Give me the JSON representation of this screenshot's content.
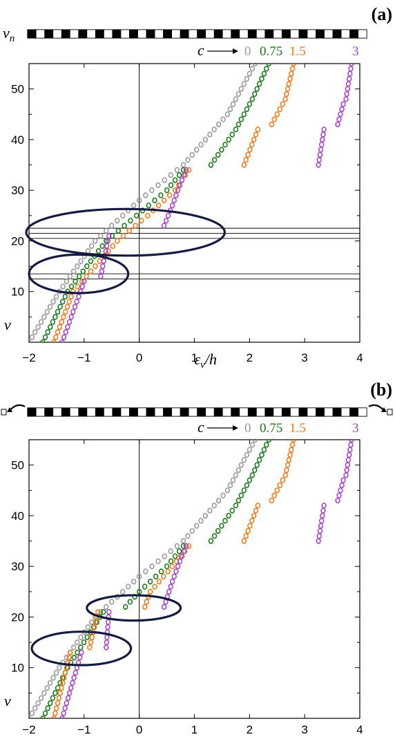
{
  "colors": {
    "c0": "#9a9a9a",
    "c075": "#1a7a1a",
    "c15": "#f07c20",
    "c3": "#a845c8",
    "ellipse": "#141a40",
    "frame": "#000000"
  },
  "chart_data": [
    {
      "type": "scatter",
      "panel_label": "(a)",
      "strip_label": "v_n",
      "xlabel": "ε_ν/h",
      "ylabel": "ν",
      "c_label": "c",
      "xlim": [
        -2,
        4
      ],
      "ylim": [
        0,
        55
      ],
      "xticks": [
        "−2",
        "−1",
        "0",
        "1",
        "2",
        "3",
        "4"
      ],
      "yticks": [
        "10",
        "20",
        "30",
        "40",
        "50"
      ],
      "c_values": [
        "0",
        "0.75",
        "1.5",
        "3"
      ],
      "series": [
        {
          "name": "0",
          "color_key": "c0",
          "nu_range": [
            0,
            55
          ],
          "anchors": [
            [
              0,
              -2.0
            ],
            [
              10,
              -1.45
            ],
            [
              20,
              -0.8
            ],
            [
              28,
              0.0
            ],
            [
              35,
              0.8
            ],
            [
              45,
              1.6
            ],
            [
              55,
              2.1
            ]
          ]
        },
        {
          "name": "0.75",
          "color_key": "c075",
          "segments": [
            {
              "nu_range": [
                0,
                34
              ],
              "anchors": [
                [
                  0,
                  -1.75
                ],
                [
                  10,
                  -1.3
                ],
                [
                  20,
                  -0.6
                ],
                [
                  25,
                  -0.05
                ],
                [
                  30,
                  0.5
                ],
                [
                  34,
                  0.8
                ]
              ]
            },
            {
              "nu_range": [
                35,
                55
              ],
              "anchors": [
                [
                  35,
                  1.3
                ],
                [
                  42,
                  1.75
                ],
                [
                  48,
                  2.05
                ],
                [
                  55,
                  2.35
                ]
              ]
            }
          ]
        },
        {
          "name": "1.5",
          "color_key": "c15",
          "segments": [
            {
              "nu_range": [
                0,
                34
              ],
              "anchors": [
                [
                  0,
                  -1.55
                ],
                [
                  10,
                  -1.2
                ],
                [
                  20,
                  -0.4
                ],
                [
                  25,
                  0.15
                ],
                [
                  30,
                  0.65
                ],
                [
                  34,
                  0.9
                ]
              ]
            },
            {
              "nu_range": [
                35,
                42
              ],
              "anchors": [
                [
                  35,
                  1.9
                ],
                [
                  42,
                  2.15
                ]
              ]
            },
            {
              "nu_range": [
                43,
                47
              ],
              "anchors": [
                [
                  43,
                  2.4
                ],
                [
                  47,
                  2.6
                ]
              ]
            },
            {
              "nu_range": [
                48,
                55
              ],
              "anchors": [
                [
                  48,
                  2.65
                ],
                [
                  55,
                  2.8
                ]
              ]
            }
          ]
        },
        {
          "name": "3",
          "color_key": "c3",
          "segments": [
            {
              "nu_range": [
                0,
                12
              ],
              "anchors": [
                [
                  0,
                  -1.4
                ],
                [
                  12,
                  -1.0
                ]
              ]
            },
            {
              "nu_range": [
                13,
                21
              ],
              "anchors": [
                [
                  13,
                  -0.7
                ],
                [
                  21,
                  -0.55
                ]
              ]
            },
            {
              "nu_range": [
                23,
                34
              ],
              "anchors": [
                [
                  23,
                  0.45
                ],
                [
                  27,
                  0.6
                ],
                [
                  30,
                  0.7
                ],
                [
                  34,
                  0.85
                ]
              ]
            },
            {
              "nu_range": [
                35,
                42
              ],
              "anchors": [
                [
                  35,
                  3.25
                ],
                [
                  42,
                  3.35
                ]
              ]
            },
            {
              "nu_range": [
                43,
                47
              ],
              "anchors": [
                [
                  43,
                  3.6
                ],
                [
                  47,
                  3.7
                ]
              ]
            },
            {
              "nu_range": [
                48,
                55
              ],
              "anchors": [
                [
                  48,
                  3.75
                ],
                [
                  55,
                  3.85
                ]
              ]
            }
          ]
        }
      ],
      "hlines": [
        12.5,
        13.5,
        20.5,
        21.5,
        22.5
      ],
      "ellipses": [
        {
          "cx": -0.25,
          "cy": 21.7,
          "rx": 1.8,
          "ry": 4.6
        },
        {
          "cx": -1.1,
          "cy": 13.5,
          "rx": 0.9,
          "ry": 3.8
        }
      ]
    },
    {
      "type": "scatter",
      "panel_label": "(b)",
      "strip_label": "",
      "xlabel": "",
      "ylabel": "ν",
      "c_label": "c",
      "xlim": [
        -2,
        4
      ],
      "ylim": [
        0,
        55
      ],
      "xticks": [
        "−2",
        "−1",
        "0",
        "1",
        "2",
        "3",
        "4"
      ],
      "yticks": [
        "10",
        "20",
        "30",
        "40",
        "50"
      ],
      "c_values": [
        "0",
        "0.75",
        "1.5",
        "3"
      ],
      "series": [
        {
          "name": "0",
          "color_key": "c0",
          "nu_range": [
            0,
            55
          ],
          "anchors": [
            [
              0,
              -2.0
            ],
            [
              10,
              -1.45
            ],
            [
              20,
              -0.8
            ],
            [
              28,
              0.0
            ],
            [
              35,
              0.8
            ],
            [
              45,
              1.6
            ],
            [
              55,
              2.1
            ]
          ]
        },
        {
          "name": "0.75",
          "color_key": "c075",
          "segments": [
            {
              "nu_range": [
                0,
                21
              ],
              "anchors": [
                [
                  0,
                  -1.75
                ],
                [
                  10,
                  -1.3
                ],
                [
                  21,
                  -0.65
                ]
              ]
            },
            {
              "nu_range": [
                22,
                34
              ],
              "anchors": [
                [
                  22,
                  -0.25
                ],
                [
                  25,
                  0.0
                ],
                [
                  30,
                  0.5
                ],
                [
                  34,
                  0.8
                ]
              ]
            },
            {
              "nu_range": [
                35,
                55
              ],
              "anchors": [
                [
                  35,
                  1.3
                ],
                [
                  42,
                  1.75
                ],
                [
                  48,
                  2.05
                ],
                [
                  55,
                  2.35
                ]
              ]
            }
          ]
        },
        {
          "name": "1.5",
          "color_key": "c15",
          "segments": [
            {
              "nu_range": [
                0,
                13
              ],
              "anchors": [
                [
                  0,
                  -1.55
                ],
                [
                  13,
                  -1.25
                ]
              ]
            },
            {
              "nu_range": [
                14,
                21
              ],
              "anchors": [
                [
                  14,
                  -0.9
                ],
                [
                  21,
                  -0.75
                ]
              ]
            },
            {
              "nu_range": [
                22,
                34
              ],
              "anchors": [
                [
                  22,
                  0.1
                ],
                [
                  25,
                  0.2
                ],
                [
                  30,
                  0.6
                ],
                [
                  34,
                  0.9
                ]
              ]
            },
            {
              "nu_range": [
                35,
                42
              ],
              "anchors": [
                [
                  35,
                  1.9
                ],
                [
                  42,
                  2.15
                ]
              ]
            },
            {
              "nu_range": [
                43,
                47
              ],
              "anchors": [
                [
                  43,
                  2.4
                ],
                [
                  47,
                  2.6
                ]
              ]
            },
            {
              "nu_range": [
                48,
                55
              ],
              "anchors": [
                [
                  48,
                  2.65
                ],
                [
                  55,
                  2.8
                ]
              ]
            }
          ]
        },
        {
          "name": "3",
          "color_key": "c3",
          "segments": [
            {
              "nu_range": [
                0,
                13
              ],
              "anchors": [
                [
                  0,
                  -1.4
                ],
                [
                  13,
                  -1.05
                ]
              ]
            },
            {
              "nu_range": [
                14,
                21
              ],
              "anchors": [
                [
                  14,
                  -0.6
                ],
                [
                  21,
                  -0.55
                ]
              ]
            },
            {
              "nu_range": [
                22,
                34
              ],
              "anchors": [
                [
                  22,
                  0.45
                ],
                [
                  27,
                  0.6
                ],
                [
                  30,
                  0.7
                ],
                [
                  34,
                  0.85
                ]
              ]
            },
            {
              "nu_range": [
                35,
                42
              ],
              "anchors": [
                [
                  35,
                  3.25
                ],
                [
                  42,
                  3.35
                ]
              ]
            },
            {
              "nu_range": [
                43,
                47
              ],
              "anchors": [
                [
                  43,
                  3.6
                ],
                [
                  47,
                  3.7
                ]
              ]
            },
            {
              "nu_range": [
                48,
                55
              ],
              "anchors": [
                [
                  48,
                  3.75
                ],
                [
                  55,
                  3.85
                ]
              ]
            }
          ]
        }
      ],
      "hlines": [],
      "ellipses": [
        {
          "cx": -0.1,
          "cy": 21.8,
          "rx": 0.85,
          "ry": 2.5
        },
        {
          "cx": -1.05,
          "cy": 13.8,
          "rx": 0.9,
          "ry": 3.3
        }
      ]
    }
  ]
}
